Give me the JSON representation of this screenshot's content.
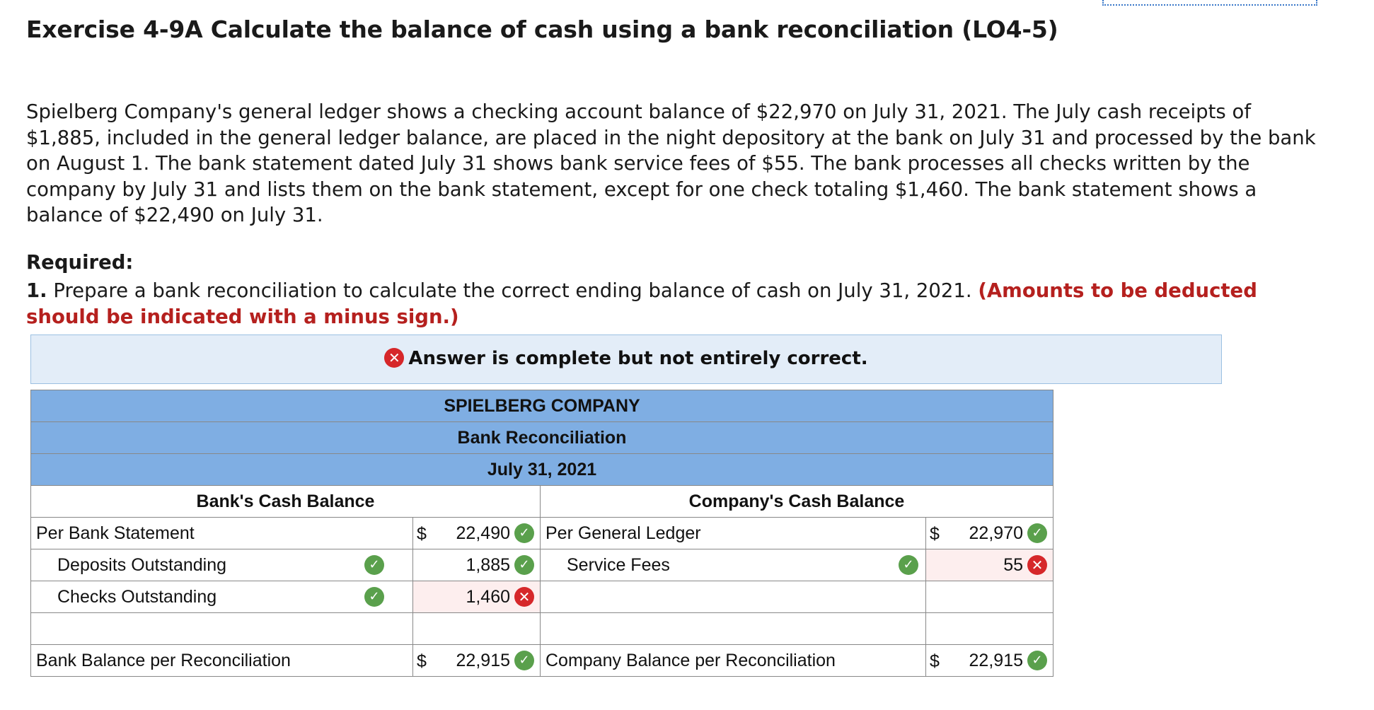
{
  "title": "Exercise 4-9A Calculate the balance of cash using a bank reconciliation (LO4-5)",
  "problem_text": "Spielberg Company's general ledger shows a checking account balance of $22,970 on July 31, 2021. The July cash receipts of $1,885, included in the general ledger balance, are placed in the night depository at the bank on July 31 and processed by the bank on August 1. The bank statement dated July 31 shows bank service fees of $55. The bank processes all checks written by the company by July 31 and lists them on the bank statement, except for one check totaling $1,460. The bank statement shows a balance of $22,490 on July 31.",
  "required": {
    "heading": "Required:",
    "number": "1.",
    "text": "Prepare a bank reconciliation to calculate the correct ending balance of cash on July 31, 2021.",
    "note": "(Amounts to be deducted should be indicated with a minus sign.)"
  },
  "banner": {
    "icon": "x-circle-icon",
    "text": "Answer is complete but not entirely correct."
  },
  "table": {
    "company": "SPIELBERG COMPANY",
    "statement": "Bank Reconciliation",
    "date": "July 31, 2021",
    "bank_header": "Bank's Cash Balance",
    "company_header": "Company's Cash Balance",
    "rows": {
      "bank_statement_label": "Per Bank Statement",
      "bank_statement_dollar": "$",
      "bank_statement_value": "22,490",
      "ledger_label": "Per General Ledger",
      "ledger_dollar": "$",
      "ledger_value": "22,970",
      "deposits_label": "Deposits Outstanding",
      "deposits_value": "1,885",
      "service_label": "Service Fees",
      "service_value": "55",
      "checks_label": "Checks Outstanding",
      "checks_value": "1,460",
      "bank_total_label": "Bank Balance per Reconciliation",
      "bank_total_dollar": "$",
      "bank_total_value": "22,915",
      "company_total_label": "Company Balance per Reconciliation",
      "company_total_dollar": "$",
      "company_total_value": "22,915"
    }
  },
  "colors": {
    "header_blue": "#7faee3",
    "banner_bg": "#e3edf8",
    "correct_green": "#5aa04c",
    "incorrect_red": "#d6272a",
    "note_red": "#b5201e",
    "incorrect_cell_bg": "#fdeeee"
  }
}
